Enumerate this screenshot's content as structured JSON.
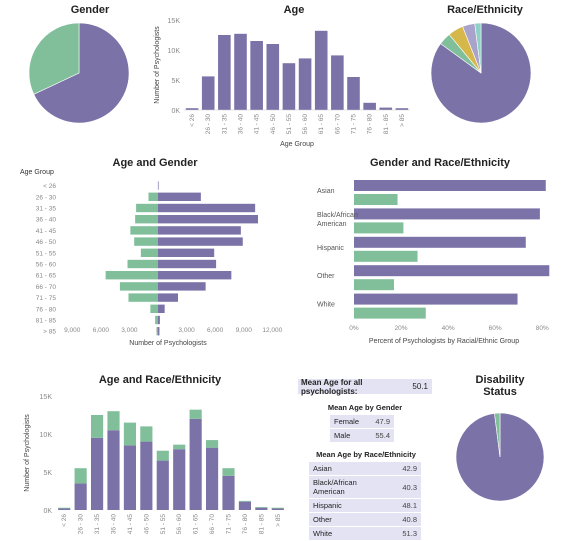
{
  "colors": {
    "purple": "#7b73a8",
    "green": "#80bf9a",
    "gold": "#d6b84a",
    "lavender": "#a9a3cc",
    "teal": "#8fd0c8",
    "axis": "#888888"
  },
  "titles": {
    "gender": "Gender",
    "age": "Age",
    "race": "Race/Ethnicity",
    "age_gender": "Age and Gender",
    "gender_race": "Gender and Race/Ethnicity",
    "age_race": "Age and Race/Ethnicity",
    "disability": [
      "Disability",
      "Status"
    ]
  },
  "age_groups": [
    "< 26",
    "26 - 30",
    "31 - 35",
    "36 - 40",
    "41 - 45",
    "46 - 50",
    "51 - 55",
    "56 - 60",
    "61 - 65",
    "66 - 70",
    "71 - 75",
    "76 - 80",
    "81 - 85",
    "> 85"
  ],
  "chart_data": [
    {
      "id": "gender",
      "type": "pie",
      "title": "Gender",
      "slices": [
        {
          "value": 68,
          "color": "#7b73a8"
        },
        {
          "value": 32,
          "color": "#80bf9a"
        }
      ]
    },
    {
      "id": "age",
      "type": "bar",
      "title": "Age",
      "ylabel": "Number of Psychologists",
      "xlabel": "Age Group",
      "yticks": [
        "0K",
        "5K",
        "10K",
        "15K"
      ],
      "ylim": [
        0,
        15000
      ],
      "values": [
        300,
        5600,
        12500,
        12700,
        11500,
        11000,
        7800,
        8600,
        13200,
        9100,
        5500,
        1200,
        400,
        300
      ]
    },
    {
      "id": "race",
      "type": "pie",
      "title": "Race/Ethnicity",
      "slices": [
        {
          "value": 85,
          "color": "#7b73a8"
        },
        {
          "value": 4,
          "color": "#80bf9a"
        },
        {
          "value": 5,
          "color": "#d6b84a"
        },
        {
          "value": 4,
          "color": "#a9a3cc"
        },
        {
          "value": 2,
          "color": "#8fd0c8"
        }
      ]
    },
    {
      "id": "age_gender",
      "type": "bar",
      "title": "Age and Gender",
      "legend_title": "Age Group",
      "xlabel": "Number of Psychologists",
      "xticks_left": [
        "9,000",
        "6,000",
        "3,000",
        "0"
      ],
      "xticks_right": [
        "3,000",
        "6,000",
        "9,000",
        "12,000"
      ],
      "xlim": [
        -10500,
        13500
      ],
      "series": [
        {
          "name": "Female",
          "values": [
            60,
            4500,
            10200,
            10500,
            8700,
            8900,
            5900,
            6100,
            7700,
            5000,
            2100,
            700,
            200,
            150
          ]
        },
        {
          "name": "Male",
          "values": [
            20,
            1000,
            2300,
            2400,
            2900,
            2500,
            1800,
            3200,
            5500,
            4000,
            3100,
            800,
            300,
            150
          ]
        }
      ]
    },
    {
      "id": "gender_race",
      "type": "bar",
      "title": "Gender and Race/Ethnicity",
      "xlabel": "Percent of Psychologists by Racial/Ethnic Group",
      "xticks": [
        "0%",
        "20%",
        "40%",
        "60%",
        "80%"
      ],
      "xlim": [
        0,
        85
      ],
      "categories": [
        "Asian",
        "Black/African American",
        "Hispanic",
        "Other",
        "White"
      ],
      "category_lines": [
        [
          "Asian"
        ],
        [
          "Black/African",
          "American"
        ],
        [
          "Hispanic"
        ],
        [
          "Other"
        ],
        [
          "White"
        ]
      ],
      "series": [
        {
          "name": "Female",
          "values": [
            81.5,
            79,
            73,
            83,
            69.5
          ]
        },
        {
          "name": "Male",
          "values": [
            18.5,
            21,
            27,
            17,
            30.5
          ]
        }
      ]
    },
    {
      "id": "age_race",
      "type": "bar",
      "title": "Age and Race/Ethnicity",
      "ylabel": "Number of Psychologists",
      "yticks": [
        "0K",
        "5K",
        "10K",
        "15K"
      ],
      "ylim": [
        0,
        15000
      ],
      "series": [
        {
          "name": "base",
          "values": [
            200,
            3500,
            9500,
            10500,
            8500,
            9000,
            6500,
            8000,
            12000,
            8200,
            4500,
            1100,
            300,
            200
          ]
        },
        {
          "name": "top",
          "values": [
            100,
            2000,
            3000,
            2500,
            3000,
            2000,
            1300,
            600,
            1200,
            1000,
            1000,
            100,
            100,
            100
          ]
        }
      ]
    },
    {
      "id": "disability",
      "type": "pie",
      "title": "Disability Status",
      "slices": [
        {
          "value": 98,
          "color": "#7b73a8"
        },
        {
          "value": 2,
          "color": "#80bf9a"
        }
      ]
    }
  ],
  "means": {
    "overall_label": "Mean Age for all psychologists:",
    "overall_value": "50.1",
    "gender_title": "Mean Age by Gender",
    "gender_rows": [
      {
        "label": "Female",
        "value": "47.9"
      },
      {
        "label": "Male",
        "value": "55.4"
      }
    ],
    "race_title": "Mean Age by Race/Ethnicity",
    "race_rows": [
      {
        "label": "Asian",
        "value": "42.9"
      },
      {
        "label": "Black/African American",
        "value": "40.3"
      },
      {
        "label": "Hispanic",
        "value": "48.1"
      },
      {
        "label": "Other",
        "value": "40.8"
      },
      {
        "label": "White",
        "value": "51.3"
      }
    ]
  }
}
